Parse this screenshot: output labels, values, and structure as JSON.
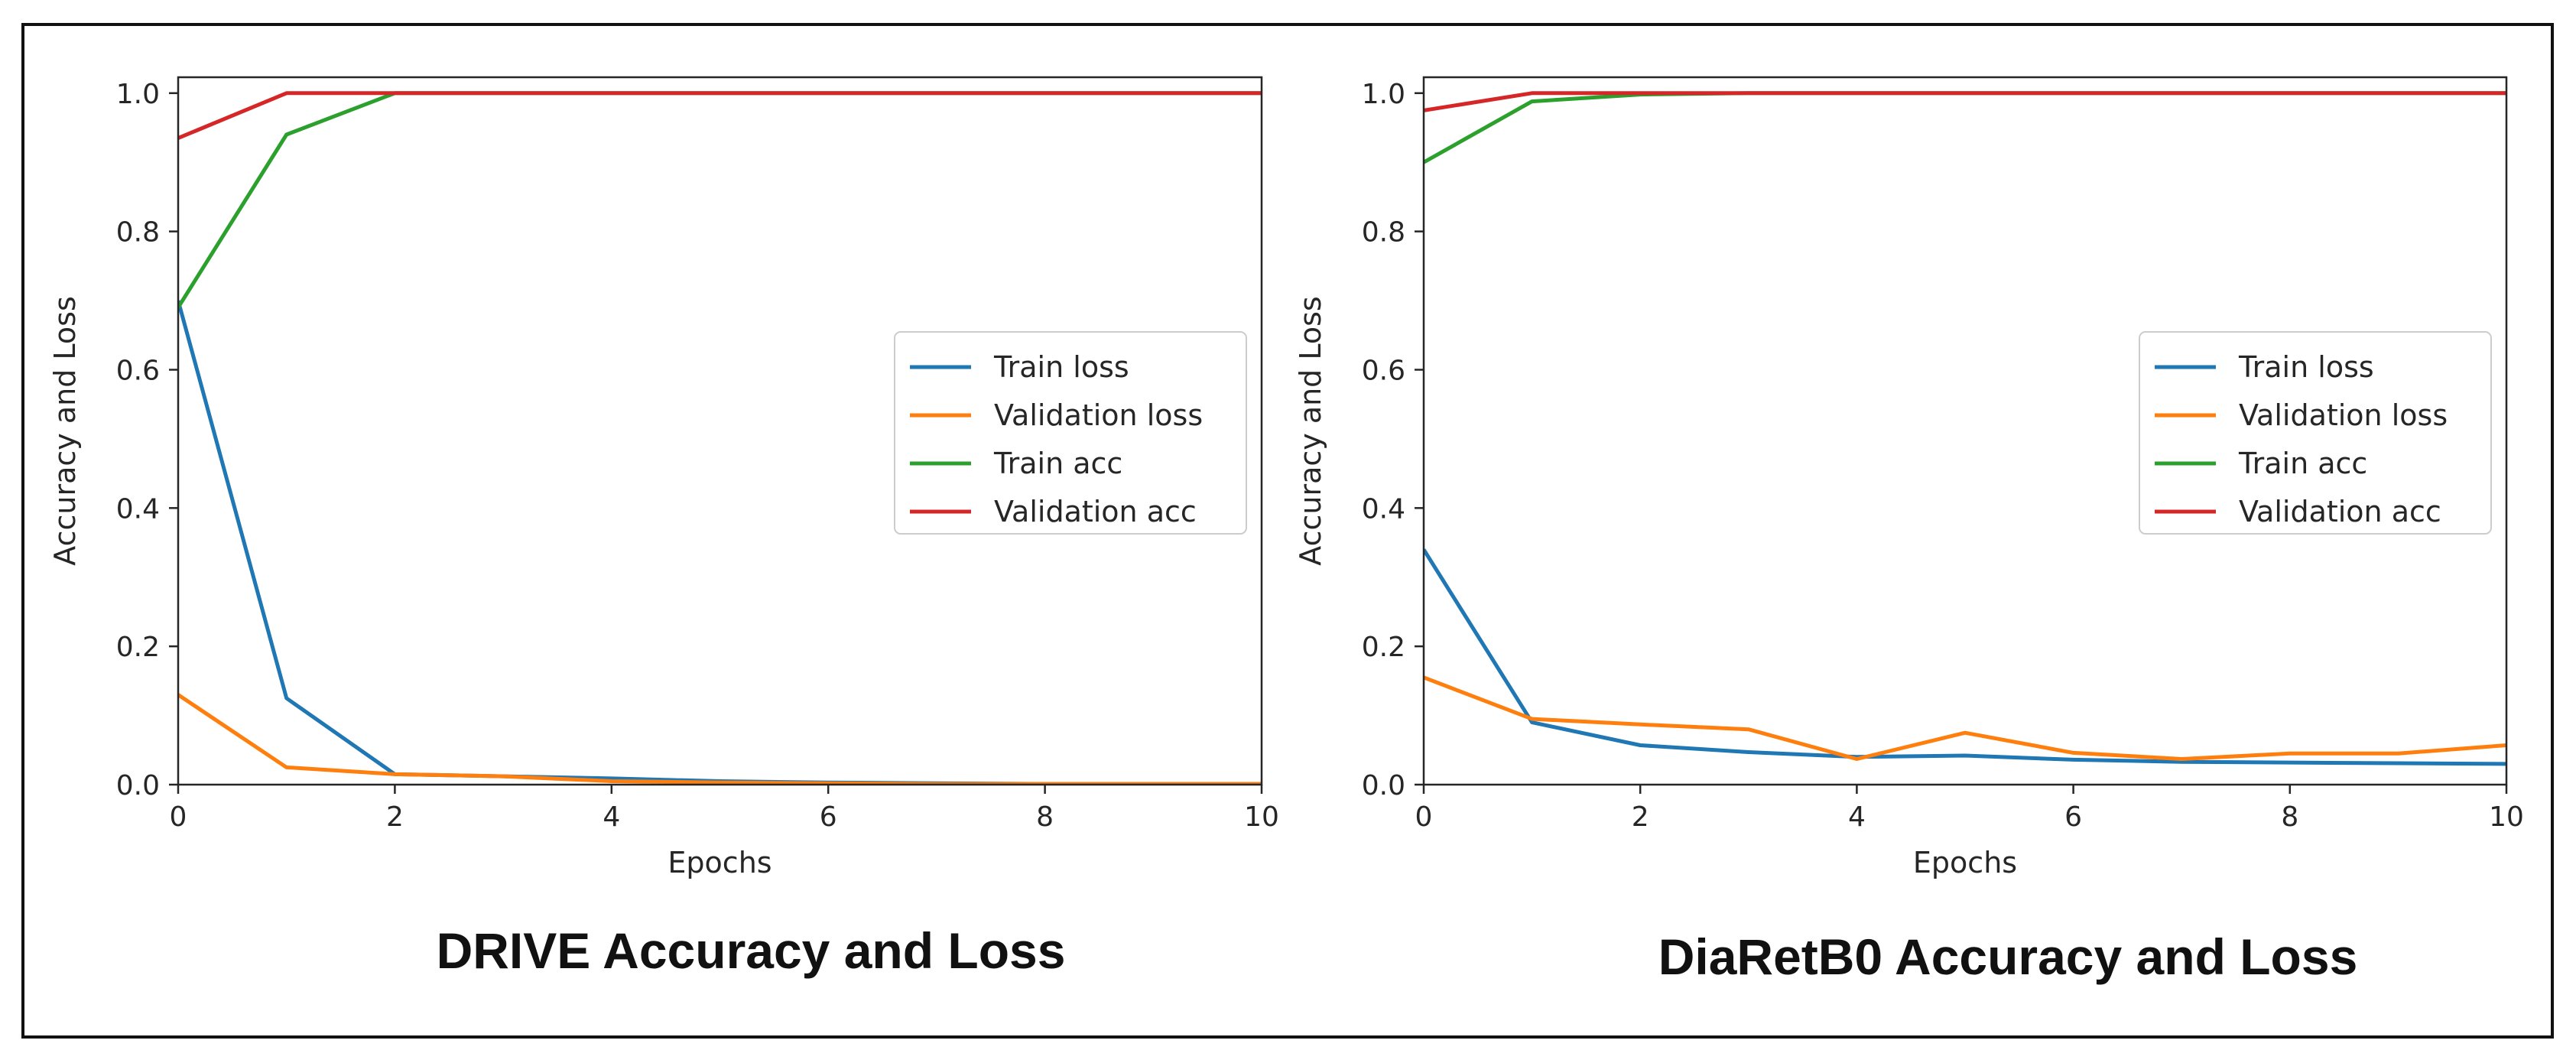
{
  "chart_data": [
    {
      "type": "line",
      "title": "DRIVE Accuracy and Loss",
      "xlabel": "Epochs",
      "ylabel": "Accuracy and Loss",
      "xlim": [
        0,
        10
      ],
      "ylim": [
        0,
        1.0
      ],
      "xticks": [
        0,
        2,
        4,
        6,
        8,
        10
      ],
      "yticks": [
        0.0,
        0.2,
        0.4,
        0.6,
        0.8,
        1.0
      ],
      "xtick_labels": [
        "0",
        "2",
        "4",
        "6",
        "8",
        "10"
      ],
      "ytick_labels": [
        "0.0",
        "0.2",
        "0.4",
        "0.6",
        "0.8",
        "1.0"
      ],
      "legend_position": "center-right",
      "x": [
        0,
        1,
        2,
        3,
        4,
        5,
        6,
        7,
        8,
        9,
        10
      ],
      "series": [
        {
          "name": "Train loss",
          "color": "#1f77b4",
          "values": [
            0.7,
            0.125,
            0.015,
            0.012,
            0.009,
            0.005,
            0.003,
            0.002,
            0.001,
            0.001,
            0.001
          ]
        },
        {
          "name": "Validation loss",
          "color": "#ff7f0e",
          "values": [
            0.13,
            0.025,
            0.015,
            0.012,
            0.005,
            0.003,
            0.002,
            0.001,
            0.001,
            0.001,
            0.001
          ]
        },
        {
          "name": "Train acc",
          "color": "#2ca02c",
          "values": [
            0.69,
            0.94,
            1.0,
            1.0,
            1.0,
            1.0,
            1.0,
            1.0,
            1.0,
            1.0,
            1.0
          ]
        },
        {
          "name": "Validation acc",
          "color": "#d62728",
          "values": [
            0.935,
            1.0,
            1.0,
            1.0,
            1.0,
            1.0,
            1.0,
            1.0,
            1.0,
            1.0,
            1.0
          ]
        }
      ]
    },
    {
      "type": "line",
      "title": "DiaRetB0 Accuracy and Loss",
      "xlabel": "Epochs",
      "ylabel": "Accuracy and Loss",
      "xlim": [
        0,
        10
      ],
      "ylim": [
        0,
        1.0
      ],
      "xticks": [
        0,
        2,
        4,
        6,
        8,
        10
      ],
      "yticks": [
        0.0,
        0.2,
        0.4,
        0.6,
        0.8,
        1.0
      ],
      "xtick_labels": [
        "0",
        "2",
        "4",
        "6",
        "8",
        "10"
      ],
      "ytick_labels": [
        "0.0",
        "0.2",
        "0.4",
        "0.6",
        "0.8",
        "1.0"
      ],
      "legend_position": "center-right",
      "x": [
        0,
        1,
        2,
        3,
        4,
        5,
        6,
        7,
        8,
        9,
        10
      ],
      "series": [
        {
          "name": "Train loss",
          "color": "#1f77b4",
          "values": [
            0.34,
            0.09,
            0.057,
            0.047,
            0.04,
            0.042,
            0.036,
            0.033,
            0.032,
            0.031,
            0.03
          ]
        },
        {
          "name": "Validation loss",
          "color": "#ff7f0e",
          "values": [
            0.155,
            0.095,
            0.087,
            0.08,
            0.037,
            0.075,
            0.046,
            0.037,
            0.045,
            0.045,
            0.057
          ]
        },
        {
          "name": "Train acc",
          "color": "#2ca02c",
          "values": [
            0.9,
            0.988,
            0.998,
            1.0,
            1.0,
            1.0,
            1.0,
            1.0,
            1.0,
            1.0,
            1.0
          ]
        },
        {
          "name": "Validation acc",
          "color": "#d62728",
          "values": [
            0.975,
            1.0,
            1.0,
            1.0,
            1.0,
            1.0,
            1.0,
            1.0,
            1.0,
            1.0,
            1.0
          ]
        }
      ]
    }
  ]
}
